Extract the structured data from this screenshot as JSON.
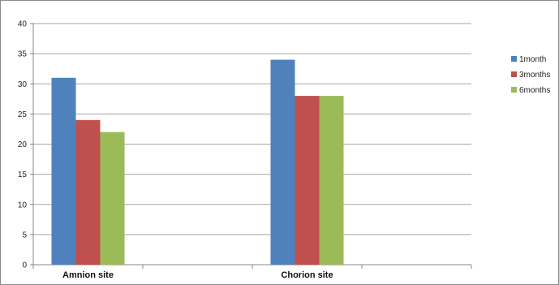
{
  "chart_data": {
    "type": "bar",
    "categories": [
      "Amnion site",
      "Chorion site"
    ],
    "series": [
      {
        "name": "1month",
        "values": [
          31,
          34
        ],
        "color": "#4F81BD"
      },
      {
        "name": "3months",
        "values": [
          24,
          28
        ],
        "color": "#C0504D"
      },
      {
        "name": "6months",
        "values": [
          22,
          28
        ],
        "color": "#9BBB59"
      }
    ],
    "title": "",
    "xlabel": "",
    "ylabel": "",
    "ylim": [
      0,
      40
    ],
    "yticks": [
      0,
      5,
      10,
      15,
      20,
      25,
      30,
      35,
      40
    ],
    "grid": true,
    "legend_position": "right"
  }
}
